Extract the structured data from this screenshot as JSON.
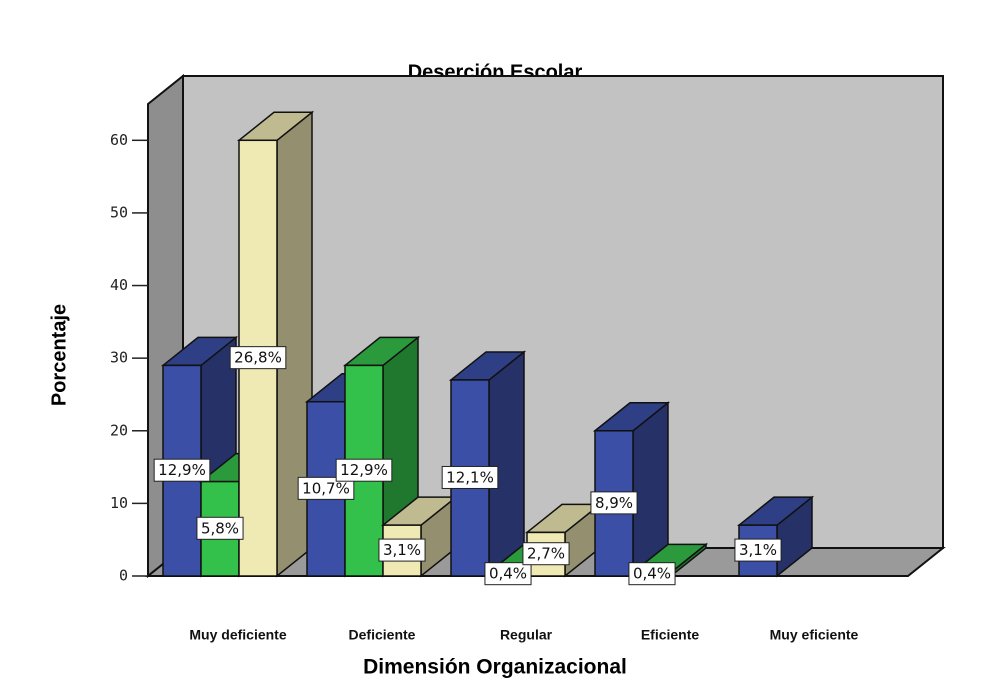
{
  "chart_data": {
    "type": "bar3d",
    "title": "Deserción Escolar",
    "x_label": "Dimensión Organizacional",
    "y_label": "Porcentaje",
    "categories": [
      "Muy deficiente",
      "Deficiente",
      "Regular",
      "Eficiente",
      "Muy eficiente"
    ],
    "series": [
      {
        "color": "#3b4fa6",
        "values": [
          29,
          24,
          27,
          20,
          7
        ],
        "labels": [
          "12,9%",
          "10,7%",
          "12,1%",
          "8,9%",
          "3,1%"
        ]
      },
      {
        "color": "#34c14b",
        "values": [
          13,
          29,
          0.5,
          0.5,
          0
        ],
        "labels": [
          "5,8%",
          "12,9%",
          "0,4%",
          "0,4%",
          null
        ]
      },
      {
        "color": "#efe9b3",
        "values": [
          60,
          7,
          6,
          0,
          0
        ],
        "labels": [
          "26,8%",
          "3,1%",
          "2,7%",
          null,
          null
        ]
      }
    ],
    "ylim": [
      0,
      65
    ],
    "yticks": [
      0,
      10,
      20,
      30,
      40,
      50,
      60
    ]
  }
}
